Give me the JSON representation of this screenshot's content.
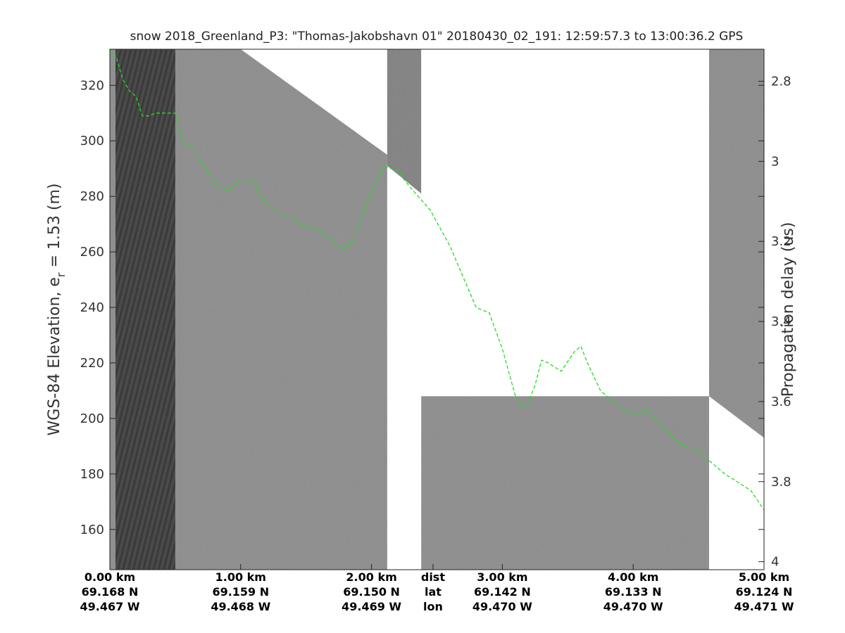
{
  "chart_data": {
    "type": "heatmap",
    "title": "snow 2018_Greenland_P3: \"Thomas-Jakobshavn 01\"  20180430_02_191: 12:59:57.3 to 13:00:36.2 GPS",
    "ylabel_left": "WGS-84 Elevation, e_r = 1.53 (m)",
    "ylabel_left_main": "WGS-84 Elevation, e",
    "ylabel_left_sub": "r",
    "ylabel_left_tail": " = 1.53 (m)",
    "ylabel_right": "Propagation delay (us)",
    "x_range_km": [
      0,
      5.0
    ],
    "ylim_left": [
      145.5,
      333
    ],
    "ylim_right": [
      4.02,
      2.72
    ],
    "left_ticks": [
      "160",
      "180",
      "200",
      "220",
      "240",
      "260",
      "280",
      "300",
      "320"
    ],
    "left_tick_values": [
      160,
      180,
      200,
      220,
      240,
      260,
      280,
      300,
      320
    ],
    "right_ticks": [
      "2.8",
      "3",
      "3.2",
      "3.4",
      "3.6",
      "3.8",
      "4"
    ],
    "right_tick_values": [
      2.8,
      3.0,
      3.2,
      3.4,
      3.6,
      3.8,
      4.0
    ],
    "bottom_labels": [
      {
        "km": 0.0,
        "dist": "0.00 km",
        "lat": "69.168 N",
        "lon": "49.467 W"
      },
      {
        "km": 1.0,
        "dist": "1.00 km",
        "lat": "69.159 N",
        "lon": "49.468 W"
      },
      {
        "km": 2.0,
        "dist": "2.00 km",
        "lat": "69.150 N",
        "lon": "49.469 W"
      },
      {
        "km": 2.47,
        "dist": "dist",
        "lat": "lat",
        "lon": "lon"
      },
      {
        "km": 3.0,
        "dist": "3.00 km",
        "lat": "69.142 N",
        "lon": "49.470 W"
      },
      {
        "km": 4.0,
        "dist": "4.00 km",
        "lat": "69.133 N",
        "lon": "49.470 W"
      },
      {
        "km": 5.0,
        "dist": "5.00 km",
        "lat": "69.124 N",
        "lon": "49.471 W"
      }
    ],
    "gaps_km": [
      [
        2.12,
        2.38
      ],
      [
        2.38,
        4.58
      ]
    ],
    "data_windows_km": [
      [
        2.12,
        2.38
      ]
    ],
    "surface_profile": {
      "x_km": [
        0,
        0.5,
        2.2,
        4.6,
        5.0
      ],
      "elev_m": [
        333,
        320,
        291,
        208,
        193
      ],
      "data_bottom_m": [
        145.5,
        145.5,
        280,
        145.5,
        145.5
      ]
    },
    "dashed_layer": {
      "color": "#22dd22",
      "x_km": [
        0.0,
        0.05,
        0.1,
        0.15,
        0.2,
        0.25,
        0.3,
        0.35,
        0.4,
        0.5,
        0.55,
        0.6,
        0.65,
        0.7,
        0.8,
        0.9,
        1.0,
        1.1,
        1.15,
        1.25,
        1.3,
        1.4,
        1.5,
        1.6,
        1.7,
        1.75,
        1.8,
        1.85,
        1.9,
        2.0,
        2.1,
        2.2,
        2.3,
        2.45,
        2.6,
        2.8,
        2.9,
        3.0,
        3.1,
        3.15,
        3.2,
        3.25,
        3.3,
        3.35,
        3.45,
        3.55,
        3.6,
        3.65,
        3.75,
        3.8,
        3.9,
        4.0,
        4.1,
        4.15,
        4.25,
        4.35,
        4.5,
        4.7,
        4.9,
        5.0
      ],
      "elev_m": [
        333,
        330,
        322,
        318,
        316,
        309,
        309,
        310,
        310,
        310,
        300,
        298,
        297,
        292,
        285,
        282,
        286,
        286,
        280,
        275,
        274,
        272,
        269,
        268,
        264,
        262,
        261,
        264,
        270,
        282,
        291,
        289,
        283,
        275,
        262,
        240,
        238,
        225,
        208,
        204,
        206,
        212,
        221,
        220,
        217,
        224,
        226,
        220,
        210,
        208,
        204,
        201,
        203,
        201,
        196,
        191,
        188,
        180,
        174,
        167
      ]
    }
  }
}
